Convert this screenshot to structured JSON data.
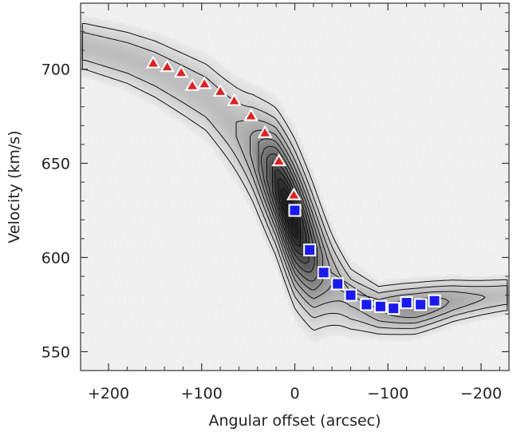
{
  "chart_data": {
    "type": "scatter",
    "title": "",
    "xlabel": "Angular offset (arcsec)",
    "ylabel": "Velocity (km/s)",
    "xlim": [
      230,
      -230
    ],
    "ylim": [
      540,
      735
    ],
    "x_ticks": [
      200,
      100,
      0,
      -100,
      -200
    ],
    "x_tick_labels": [
      "+200",
      "+100",
      "0",
      "−100",
      "−200"
    ],
    "y_ticks": [
      550,
      600,
      650,
      700
    ],
    "y_tick_labels": [
      "550",
      "600",
      "650",
      "700"
    ],
    "background": "grayscale position-velocity diagram with contours",
    "series": [
      {
        "marker": "triangle",
        "color": "#dd2222",
        "points": [
          [
            152,
            703
          ],
          [
            137,
            701
          ],
          [
            122,
            698
          ],
          [
            110,
            691
          ],
          [
            97,
            692
          ],
          [
            80,
            688
          ],
          [
            65,
            683
          ],
          [
            47,
            675
          ],
          [
            32,
            666
          ],
          [
            17,
            651
          ],
          [
            1,
            633
          ]
        ]
      },
      {
        "marker": "square",
        "color": "#1a1aee",
        "points": [
          [
            0,
            625
          ],
          [
            -16,
            604
          ],
          [
            -31,
            592
          ],
          [
            -46,
            586
          ],
          [
            -60,
            580
          ],
          [
            -77,
            575
          ],
          [
            -92,
            574
          ],
          [
            -106,
            573
          ],
          [
            -120,
            576
          ],
          [
            -135,
            575
          ],
          [
            -150,
            577
          ]
        ]
      }
    ]
  }
}
